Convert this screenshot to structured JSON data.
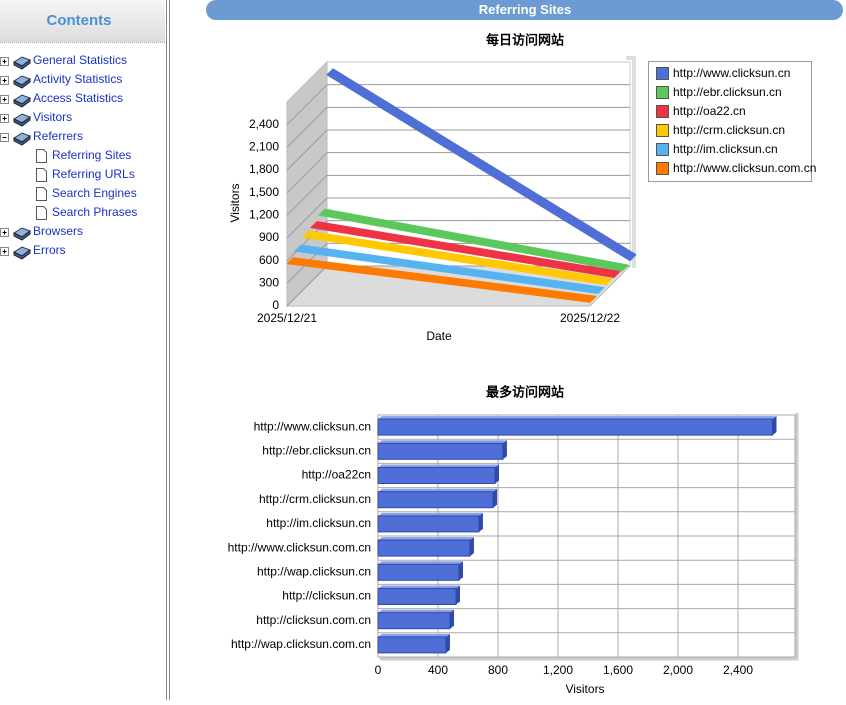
{
  "sidebar": {
    "title": "Contents",
    "items": [
      {
        "label": "General Statistics"
      },
      {
        "label": "Activity Statistics"
      },
      {
        "label": "Access Statistics"
      },
      {
        "label": "Visitors"
      },
      {
        "label": "Referrers",
        "children": [
          "Referring Sites",
          "Referring URLs",
          "Search Engines",
          "Search Phrases"
        ]
      },
      {
        "label": "Browsers"
      },
      {
        "label": "Errors"
      }
    ]
  },
  "header": {
    "title": "Referring Sites"
  },
  "chart_data": [
    {
      "type": "line3d",
      "title": "每日访问网站",
      "x_label": "Date",
      "y_label": "Visitors",
      "categories": [
        "2025/12/21",
        "2025/12/22"
      ],
      "series": [
        {
          "name": "http://www.clicksun.cn",
          "color": "#4f6fd6",
          "values": [
            2530,
            70
          ]
        },
        {
          "name": "http://ebr.clicksun.cn",
          "color": "#5cc85c",
          "values": [
            780,
            40
          ]
        },
        {
          "name": "http://oa22.cn",
          "color": "#ee3344",
          "values": [
            720,
            60
          ]
        },
        {
          "name": "http://crm.clicksun.cn",
          "color": "#ffc800",
          "values": [
            700,
            70
          ]
        },
        {
          "name": "http://im.clicksun.cn",
          "color": "#55b4f0",
          "values": [
            620,
            60
          ]
        },
        {
          "name": "http://www.clicksun.com.cn",
          "color": "#ff7a00",
          "values": [
            560,
            50
          ]
        }
      ],
      "ylim": [
        0,
        2700
      ],
      "yticks": [
        0,
        300,
        600,
        900,
        {
          "value": 1200,
          "label": "1,200"
        },
        {
          "value": 1500,
          "label": "1,500"
        },
        {
          "value": 1800,
          "label": "1,800"
        },
        {
          "value": 2100,
          "label": "2,100"
        },
        {
          "value": 2400,
          "label": "2,400"
        }
      ],
      "grid": true
    },
    {
      "type": "hbar",
      "title": "最多访问网站",
      "x_label": "Visitors",
      "color": "#4f6fd6",
      "categories": [
        "http://www.clicksun.cn",
        "http://ebr.clicksun.cn",
        "http://oa22cn",
        "http://crm.clicksun.cn",
        "http://im.clicksun.cn",
        "http://www.clicksun.com.cn",
        "http://wap.clicksun.cn",
        "http://clicksun.cn",
        "http://clicksun.com.cn",
        "http://wap.clicksun.com.cn"
      ],
      "values": [
        2630,
        833,
        780,
        767,
        673,
        613,
        540,
        520,
        480,
        453
      ],
      "xlim": [
        0,
        2780
      ],
      "xticks": [
        0,
        400,
        800,
        {
          "value": 1200,
          "label": "1,200"
        },
        {
          "value": 1600,
          "label": "1,600"
        },
        {
          "value": 2000,
          "label": "2,000"
        },
        {
          "value": 2400,
          "label": "2,400"
        }
      ],
      "grid": true
    }
  ]
}
